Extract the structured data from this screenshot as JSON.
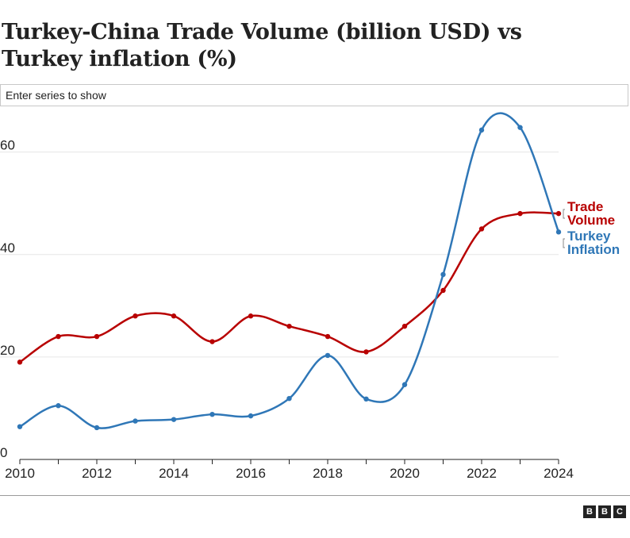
{
  "header": {
    "title": "Turkey-China Trade Volume (billion USD) vs Turkey inflation (%)"
  },
  "search": {
    "placeholder": "Enter series to show"
  },
  "chart_data": {
    "type": "line",
    "x": [
      2010,
      2011,
      2012,
      2013,
      2014,
      2015,
      2016,
      2017,
      2018,
      2019,
      2020,
      2021,
      2022,
      2023,
      2024
    ],
    "series": [
      {
        "name": "Trade Volume",
        "label_lines": [
          "Trade",
          "Volume"
        ],
        "color": "#b80000",
        "values": [
          19,
          24,
          24,
          28,
          28,
          23,
          28,
          26,
          24,
          21,
          26,
          33,
          45,
          48,
          48
        ]
      },
      {
        "name": "Turkey Inflation",
        "label_lines": [
          "Turkey",
          "Inflation"
        ],
        "color": "#2f77b7",
        "values": [
          6.4,
          10.5,
          6.2,
          7.5,
          7.8,
          8.8,
          8.5,
          11.9,
          20.3,
          11.8,
          14.6,
          36.1,
          64.3,
          64.8,
          44.4
        ]
      }
    ],
    "xticks": [
      "2010",
      "2012",
      "2014",
      "2016",
      "2018",
      "2020",
      "2022",
      "2024"
    ],
    "yticks": [
      "0",
      "20",
      "40",
      "60"
    ],
    "xlim": [
      2010,
      2024
    ],
    "ylim": [
      0,
      68
    ],
    "grid": true
  },
  "footer": {
    "logo": [
      "B",
      "B",
      "C"
    ]
  }
}
